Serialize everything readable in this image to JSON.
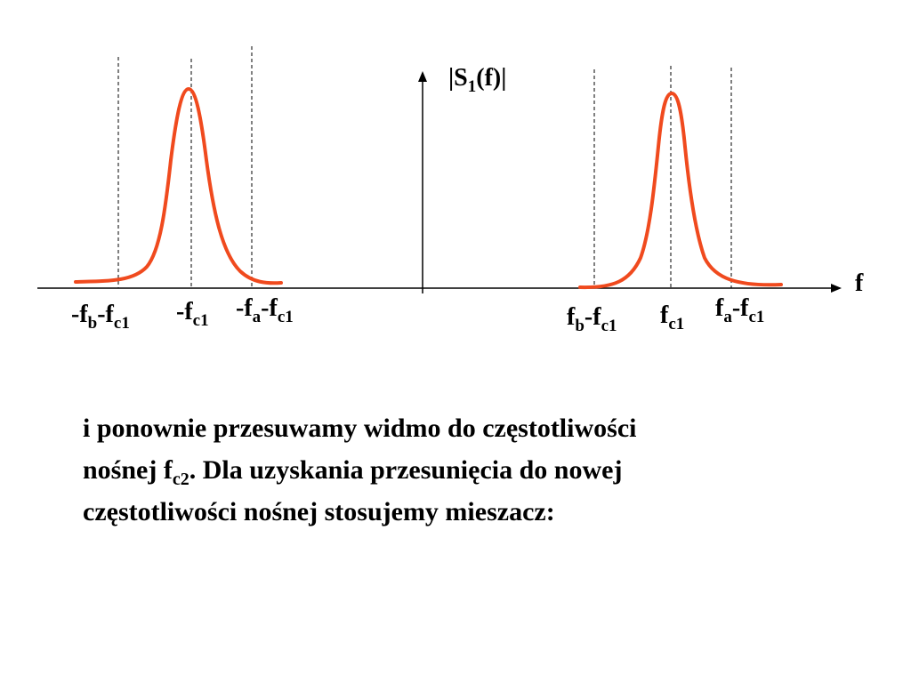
{
  "colors": {
    "curve": "#f04a1e",
    "axis": "#000000",
    "guides": "#000000",
    "background": "#ffffff"
  },
  "diagram": {
    "y_axis_label": {
      "main": "|S",
      "sub": "1",
      "rest": "(f)|"
    },
    "x_axis_label": "f",
    "labels": [
      {
        "id": "neg-fb-fc1",
        "parts": [
          {
            "t": "-f"
          },
          {
            "s": "b"
          },
          {
            "t": "-f"
          },
          {
            "s": "c1"
          }
        ]
      },
      {
        "id": "neg-fc1",
        "parts": [
          {
            "t": "-f"
          },
          {
            "s": "c1"
          }
        ]
      },
      {
        "id": "neg-fa-fc1",
        "parts": [
          {
            "t": "-f"
          },
          {
            "s": "a"
          },
          {
            "t": "-f"
          },
          {
            "s": "c1"
          }
        ]
      },
      {
        "id": "fb-fc1",
        "parts": [
          {
            "t": "f"
          },
          {
            "s": "b"
          },
          {
            "t": "-f"
          },
          {
            "s": "c1"
          }
        ]
      },
      {
        "id": "fc1",
        "parts": [
          {
            "t": "f"
          },
          {
            "s": "c1"
          }
        ]
      },
      {
        "id": "fa-fc1",
        "parts": [
          {
            "t": "f"
          },
          {
            "s": "a"
          },
          {
            "t": "-f"
          },
          {
            "s": "c1"
          }
        ]
      }
    ]
  },
  "text": {
    "line1": "i ponownie przesuwamy widmo do częstotliwości",
    "line2_before": "nośnej f",
    "line2_sub": "c2",
    "line2_after": ". Dla uzyskania przesunięcia do nowej",
    "line3": "częstotliwości nośnej stosujemy mieszacz:"
  }
}
